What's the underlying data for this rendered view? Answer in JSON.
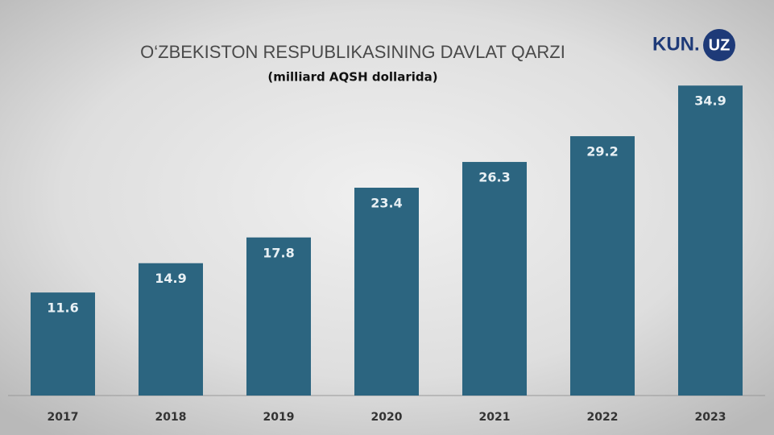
{
  "chart_data": {
    "type": "bar",
    "title": "O‘ZBEKISTON RESPUBLIKASINING DAVLAT QARZI",
    "subtitle": "(milliard AQSH dollarida)",
    "logo": {
      "left": "KUN.",
      "right": "UZ"
    },
    "categories": [
      "2017",
      "2018",
      "2019",
      "2020",
      "2021",
      "2022",
      "2023"
    ],
    "values": [
      11.6,
      14.9,
      17.8,
      23.4,
      26.3,
      29.2,
      34.9
    ],
    "color": "#2c6580",
    "ylim": [
      0,
      40
    ]
  }
}
